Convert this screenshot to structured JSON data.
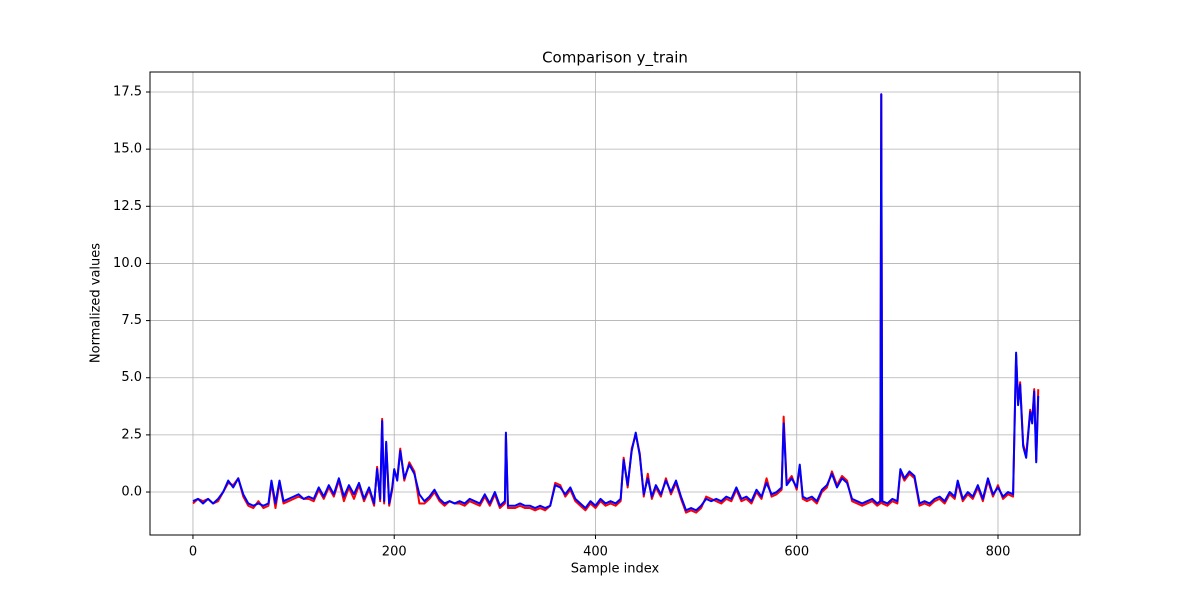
{
  "chart_data": {
    "type": "line",
    "title": "Comparison y_train",
    "x_label": "Sample index",
    "y_label": "Normalized values",
    "x": [
      0,
      5,
      10,
      15,
      20,
      25,
      30,
      35,
      40,
      45,
      50,
      55,
      60,
      65,
      70,
      75,
      78,
      82,
      86,
      90,
      95,
      100,
      105,
      110,
      115,
      120,
      125,
      130,
      135,
      140,
      145,
      150,
      155,
      160,
      165,
      170,
      175,
      180,
      183,
      186,
      188,
      190,
      192,
      195,
      198,
      200,
      203,
      206,
      210,
      215,
      220,
      225,
      230,
      235,
      240,
      245,
      250,
      255,
      260,
      265,
      270,
      275,
      280,
      285,
      290,
      295,
      300,
      305,
      310,
      311,
      313,
      320,
      325,
      330,
      335,
      340,
      345,
      350,
      355,
      360,
      365,
      370,
      375,
      380,
      385,
      390,
      395,
      400,
      405,
      410,
      415,
      420,
      425,
      428,
      432,
      436,
      440,
      444,
      448,
      452,
      456,
      460,
      465,
      470,
      475,
      480,
      485,
      490,
      495,
      500,
      505,
      510,
      515,
      520,
      525,
      530,
      535,
      540,
      545,
      550,
      555,
      560,
      565,
      570,
      575,
      580,
      585,
      587,
      590,
      595,
      600,
      603,
      606,
      610,
      615,
      620,
      625,
      630,
      635,
      640,
      645,
      650,
      655,
      660,
      665,
      670,
      675,
      680,
      683,
      684,
      685,
      690,
      695,
      700,
      703,
      707,
      712,
      717,
      722,
      727,
      732,
      737,
      742,
      747,
      752,
      757,
      760,
      765,
      770,
      775,
      780,
      785,
      790,
      795,
      800,
      805,
      810,
      815,
      818,
      820,
      822,
      825,
      828,
      832,
      834,
      836,
      838,
      840
    ],
    "series": [
      {
        "color": "#ff0000",
        "values": [
          -0.5,
          -0.3,
          -0.4,
          -0.3,
          -0.5,
          -0.4,
          0.0,
          0.4,
          0.3,
          0.6,
          -0.2,
          -0.6,
          -0.7,
          -0.4,
          -0.7,
          -0.6,
          0.4,
          -0.7,
          0.4,
          -0.5,
          -0.4,
          -0.3,
          -0.2,
          -0.3,
          -0.3,
          -0.4,
          0.1,
          -0.3,
          0.2,
          -0.2,
          0.5,
          -0.4,
          0.2,
          -0.3,
          0.3,
          -0.4,
          0.1,
          -0.6,
          1.1,
          -0.4,
          3.2,
          -0.5,
          2.1,
          -0.6,
          0.1,
          0.9,
          0.6,
          1.9,
          0.5,
          1.3,
          0.9,
          -0.5,
          -0.5,
          -0.3,
          0.0,
          -0.4,
          -0.6,
          -0.4,
          -0.5,
          -0.5,
          -0.6,
          -0.4,
          -0.5,
          -0.6,
          -0.2,
          -0.6,
          -0.1,
          -0.7,
          -0.5,
          2.5,
          -0.7,
          -0.7,
          -0.6,
          -0.7,
          -0.7,
          -0.8,
          -0.7,
          -0.8,
          -0.6,
          0.4,
          0.3,
          -0.2,
          0.1,
          -0.4,
          -0.6,
          -0.8,
          -0.5,
          -0.7,
          -0.4,
          -0.6,
          -0.5,
          -0.6,
          -0.4,
          1.5,
          0.2,
          1.9,
          2.5,
          1.7,
          -0.2,
          0.8,
          -0.3,
          0.2,
          -0.2,
          0.6,
          -0.1,
          0.4,
          -0.3,
          -0.9,
          -0.8,
          -0.9,
          -0.7,
          -0.2,
          -0.3,
          -0.4,
          -0.5,
          -0.3,
          -0.4,
          0.1,
          -0.4,
          -0.3,
          -0.5,
          0.0,
          -0.3,
          0.6,
          -0.2,
          -0.1,
          0.1,
          3.3,
          0.4,
          0.7,
          0.1,
          1.1,
          -0.3,
          -0.4,
          -0.3,
          -0.5,
          0.0,
          0.2,
          0.9,
          0.3,
          0.7,
          0.5,
          -0.4,
          -0.5,
          -0.6,
          -0.5,
          -0.4,
          -0.6,
          -0.5,
          17.4,
          -0.5,
          -0.6,
          -0.4,
          -0.5,
          0.9,
          0.5,
          0.8,
          0.6,
          -0.6,
          -0.5,
          -0.6,
          -0.4,
          -0.3,
          -0.5,
          -0.1,
          -0.3,
          0.4,
          -0.4,
          -0.1,
          -0.3,
          0.2,
          -0.4,
          0.5,
          -0.2,
          0.3,
          -0.3,
          -0.1,
          -0.2,
          6.0,
          3.9,
          4.8,
          2.1,
          1.6,
          3.6,
          3.1,
          4.5,
          1.4,
          4.5
        ]
      },
      {
        "color": "#0000ff",
        "values": [
          -0.4,
          -0.3,
          -0.5,
          -0.3,
          -0.5,
          -0.3,
          0.0,
          0.5,
          0.2,
          0.6,
          -0.1,
          -0.5,
          -0.6,
          -0.5,
          -0.6,
          -0.5,
          0.5,
          -0.5,
          0.5,
          -0.4,
          -0.3,
          -0.2,
          -0.1,
          -0.3,
          -0.2,
          -0.3,
          0.2,
          -0.2,
          0.3,
          -0.1,
          0.6,
          -0.2,
          0.3,
          -0.1,
          0.4,
          -0.3,
          0.2,
          -0.5,
          1.0,
          -0.3,
          3.1,
          -0.4,
          2.2,
          -0.5,
          0.2,
          1.0,
          0.5,
          1.8,
          0.6,
          1.2,
          0.8,
          -0.1,
          -0.4,
          -0.2,
          0.1,
          -0.3,
          -0.5,
          -0.4,
          -0.5,
          -0.4,
          -0.5,
          -0.3,
          -0.4,
          -0.5,
          -0.1,
          -0.5,
          0.0,
          -0.6,
          -0.4,
          2.6,
          -0.6,
          -0.6,
          -0.5,
          -0.6,
          -0.6,
          -0.7,
          -0.6,
          -0.7,
          -0.6,
          0.3,
          0.2,
          -0.1,
          0.2,
          -0.3,
          -0.5,
          -0.7,
          -0.4,
          -0.6,
          -0.3,
          -0.5,
          -0.4,
          -0.5,
          -0.3,
          1.4,
          0.3,
          1.8,
          2.6,
          1.6,
          -0.1,
          0.6,
          -0.2,
          0.3,
          -0.1,
          0.5,
          0.0,
          0.5,
          -0.2,
          -0.8,
          -0.7,
          -0.8,
          -0.6,
          -0.3,
          -0.4,
          -0.3,
          -0.4,
          -0.2,
          -0.3,
          0.2,
          -0.3,
          -0.2,
          -0.4,
          0.1,
          -0.2,
          0.4,
          -0.1,
          0.0,
          0.2,
          3.0,
          0.3,
          0.6,
          0.2,
          1.2,
          -0.2,
          -0.3,
          -0.2,
          -0.4,
          0.1,
          0.3,
          0.8,
          0.2,
          0.6,
          0.4,
          -0.3,
          -0.4,
          -0.5,
          -0.4,
          -0.3,
          -0.5,
          -0.4,
          17.4,
          -0.4,
          -0.5,
          -0.3,
          -0.4,
          1.0,
          0.6,
          0.9,
          0.7,
          -0.5,
          -0.4,
          -0.5,
          -0.3,
          -0.2,
          -0.4,
          0.0,
          -0.2,
          0.5,
          -0.3,
          0.0,
          -0.2,
          0.3,
          -0.3,
          0.6,
          -0.1,
          0.2,
          -0.2,
          0.0,
          -0.1,
          6.1,
          3.8,
          4.7,
          2.0,
          1.5,
          3.5,
          3.0,
          4.4,
          1.3,
          4.2
        ]
      }
    ],
    "xlim": [
      -42.7,
      881.5
    ],
    "xticks": [
      0,
      200,
      400,
      600,
      800
    ],
    "ylim": [
      -1.88,
      18.375
    ],
    "yticks": [
      {
        "value": 0,
        "label": "0.0"
      },
      2.5,
      {
        "value": 5,
        "label": "5.0"
      },
      7.5,
      {
        "value": 10,
        "label": "10.0"
      },
      12.5,
      {
        "value": 15,
        "label": "15.0"
      },
      17.5
    ],
    "grid": true
  }
}
